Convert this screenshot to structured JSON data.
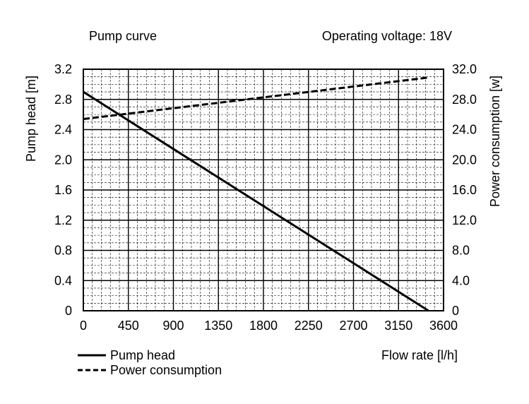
{
  "chart_data": {
    "type": "line",
    "title_left": "Pump curve",
    "title_right": "Operating voltage: 18V",
    "xlabel": "Flow rate [l/h]",
    "ylabel_left": "Pump head [m]",
    "ylabel_right": "Power consumption [w]",
    "xlim": [
      0,
      3600
    ],
    "ylim_left": [
      0,
      3.2
    ],
    "ylim_right": [
      0,
      32.0
    ],
    "x_ticks": [
      "0",
      "450",
      "900",
      "1350",
      "1800",
      "2250",
      "2700",
      "3150",
      "3600"
    ],
    "y_ticks_left": [
      "0",
      "0.4",
      "0.8",
      "1.2",
      "1.6",
      "2.0",
      "2.4",
      "2.8",
      "3.2"
    ],
    "y_ticks_right": [
      "0",
      "4.0",
      "8.0",
      "12.0",
      "16.0",
      "20.0",
      "24.0",
      "28.0",
      "32.0"
    ],
    "grid": true,
    "legend_position": "bottom-left",
    "series": [
      {
        "name": "Pump head",
        "axis": "left",
        "style": "solid",
        "x": [
          0,
          3450
        ],
        "y": [
          2.9,
          0
        ]
      },
      {
        "name": "Power consumption",
        "axis": "right",
        "style": "dashed",
        "x": [
          0,
          3450
        ],
        "y": [
          25.4,
          30.9
        ]
      }
    ]
  }
}
